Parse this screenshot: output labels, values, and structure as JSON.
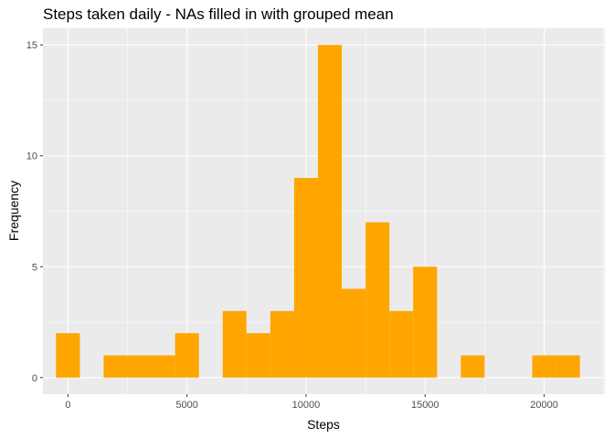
{
  "chart_data": {
    "type": "bar",
    "title": "Steps taken daily - NAs filled in with grouped mean",
    "xlabel": "Steps",
    "ylabel": "Frequency",
    "bin_width": 1000,
    "bins": [
      {
        "center": 0,
        "count": 2
      },
      {
        "center": 1000,
        "count": 0
      },
      {
        "center": 2000,
        "count": 1
      },
      {
        "center": 3000,
        "count": 1
      },
      {
        "center": 4000,
        "count": 1
      },
      {
        "center": 5000,
        "count": 2
      },
      {
        "center": 6000,
        "count": 0
      },
      {
        "center": 7000,
        "count": 3
      },
      {
        "center": 8000,
        "count": 2
      },
      {
        "center": 9000,
        "count": 3
      },
      {
        "center": 10000,
        "count": 9
      },
      {
        "center": 11000,
        "count": 15
      },
      {
        "center": 12000,
        "count": 4
      },
      {
        "center": 13000,
        "count": 7
      },
      {
        "center": 14000,
        "count": 3
      },
      {
        "center": 15000,
        "count": 5
      },
      {
        "center": 16000,
        "count": 0
      },
      {
        "center": 17000,
        "count": 1
      },
      {
        "center": 18000,
        "count": 0
      },
      {
        "center": 19000,
        "count": 0
      },
      {
        "center": 20000,
        "count": 1
      },
      {
        "center": 21000,
        "count": 1
      }
    ],
    "xlim": [
      -1050,
      22550
    ],
    "ylim": [
      -0.75,
      15.75
    ],
    "xticks": [
      0,
      5000,
      10000,
      15000,
      20000
    ],
    "yticks": [
      0,
      5,
      10,
      15
    ],
    "grid": true,
    "colors": {
      "bar": "#FFA500",
      "panel": "#EBEBEB",
      "grid_major": "#FFFFFF",
      "tick_label": "#4D4D4D"
    }
  }
}
